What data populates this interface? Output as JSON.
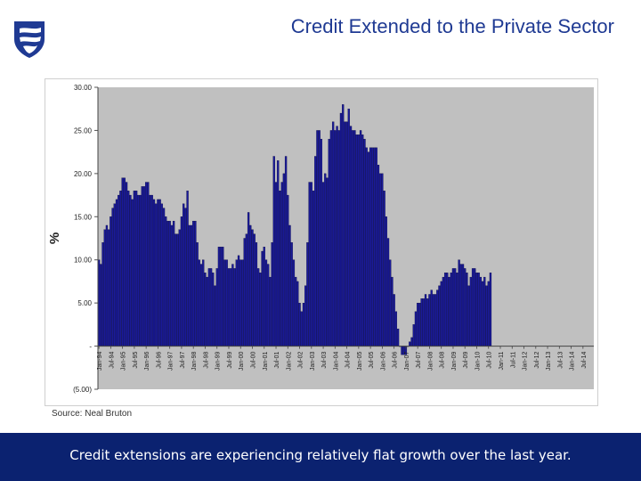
{
  "slide": {
    "title": "Credit Extended to the Private Sector",
    "source": "Source: Neal Bruton",
    "caption": "Credit extensions are experiencing relatively flat growth over the last year.",
    "logo": "shield-logo-icon"
  },
  "colors": {
    "title": "#1f3a93",
    "banner": "#0b2270",
    "plot_bg": "#c0c0c0",
    "bar_fill": "#1a1a99",
    "bar_edge": "#000033"
  },
  "chart_data": {
    "type": "bar",
    "title": "",
    "xlabel": "",
    "ylabel": "%",
    "ylim": [
      -5,
      30
    ],
    "grid": false,
    "y_tick_labels": [
      "30.00",
      "25.00",
      "20.00",
      "15.00",
      "10.00",
      "5.00",
      "-",
      "(5.00)"
    ],
    "x_tick_labels": [
      "Jan-94",
      "Jul-94",
      "Jan-95",
      "Jul-95",
      "Jan-96",
      "Jul-96",
      "Jan-97",
      "Jul-97",
      "Jan-98",
      "Jul-98",
      "Jan-99",
      "Jul-99",
      "Jan-00",
      "Jul-00",
      "Jan-01",
      "Jul-01",
      "Jan-02",
      "Jul-02",
      "Jan-03",
      "Jul-03",
      "Jan-04",
      "Jul-04",
      "Jan-05",
      "Jul-05",
      "Jan-06",
      "Jul-06",
      "Jan-07",
      "Jul-07",
      "Jan-08",
      "Jul-08",
      "Jan-09",
      "Jul-09",
      "Jan-10",
      "Jul-10",
      "Jan-11",
      "Jul-11",
      "Jan-12",
      "Jul-12",
      "Jan-13",
      "Jul-13",
      "Jan-14",
      "Jul-14"
    ],
    "series": [
      {
        "values": [
          10,
          9.5,
          12,
          13.5,
          14,
          13.5,
          15,
          16,
          16.5,
          17,
          17.5,
          18,
          19.5,
          19.5,
          19,
          18,
          17.5,
          17,
          18,
          18,
          17.5,
          17.5,
          18.5,
          18.5,
          19,
          19,
          17.5,
          17.5,
          17,
          16.5,
          17,
          17,
          16.5,
          16,
          15,
          14.5,
          14.5,
          14,
          14.5,
          13,
          13,
          13.5,
          15,
          16.5,
          16,
          18,
          14,
          14,
          14.5,
          14.5,
          12,
          10,
          9.5,
          10,
          8.5,
          8,
          9,
          9,
          8.5,
          7,
          9,
          11.5,
          11.5,
          11.5,
          10,
          10,
          9,
          9,
          9.5,
          9,
          10,
          10.5,
          10,
          10,
          12.5,
          13,
          15.5,
          14,
          13.5,
          13,
          12,
          9,
          8.5,
          11,
          11.5,
          10,
          9.5,
          8,
          12,
          22,
          19,
          21.5,
          18,
          19,
          20,
          22,
          17.5,
          14,
          12,
          10,
          8,
          7.5,
          5,
          4,
          5,
          7,
          12,
          19,
          19,
          18,
          22,
          25,
          25,
          24,
          19,
          20,
          19.5,
          24,
          25,
          26,
          25,
          25.5,
          25,
          27,
          28,
          26,
          26,
          27.5,
          25.5,
          25,
          25,
          24.5,
          24.5,
          25,
          24.5,
          24,
          23,
          22.5,
          23,
          23,
          23,
          23,
          21,
          20,
          20,
          18,
          15,
          12.5,
          10,
          8,
          6,
          4,
          2,
          0,
          -1,
          -1,
          -1,
          0,
          0.5,
          1,
          2.5,
          4,
          5,
          5,
          5.5,
          5.5,
          6,
          5.5,
          6,
          6.5,
          6,
          6,
          6.5,
          7,
          7.5,
          8,
          8.5,
          8.5,
          8,
          8.5,
          9,
          9,
          8.5,
          10,
          9.5,
          9.5,
          9,
          8.5,
          7,
          8,
          9,
          9,
          8.5,
          8.5,
          8,
          7.5,
          8,
          7,
          7.5,
          8.5
        ]
      }
    ]
  }
}
